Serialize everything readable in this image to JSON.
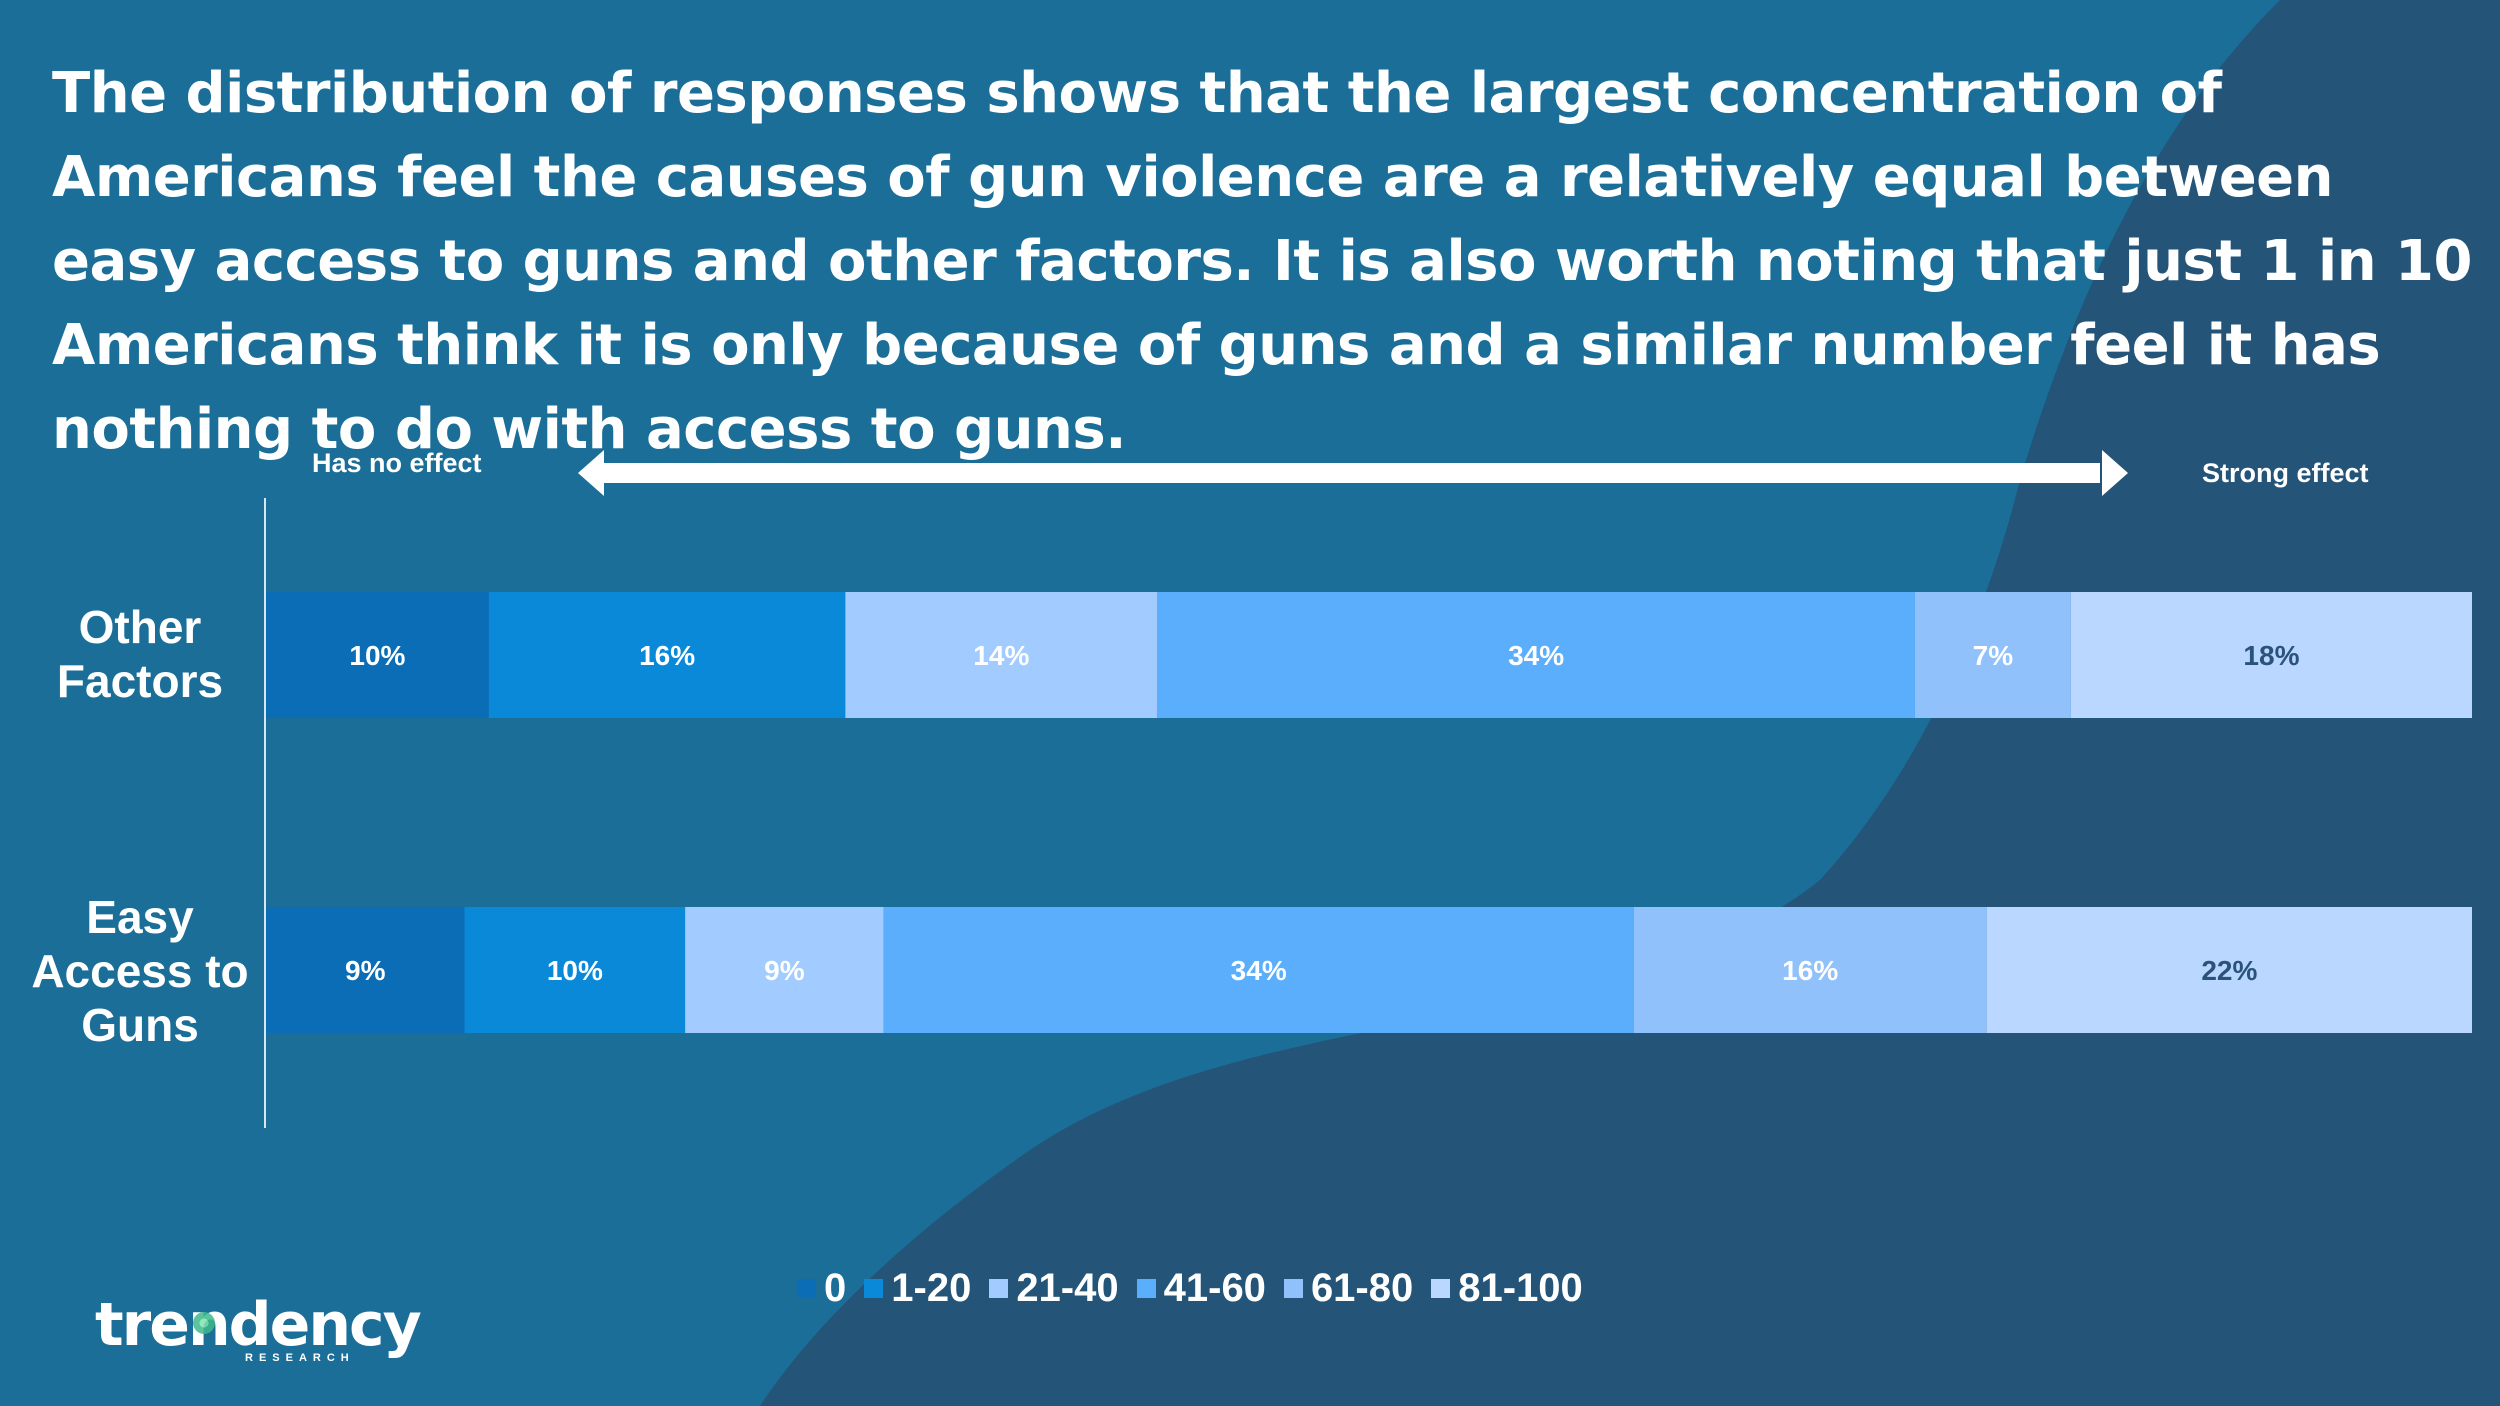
{
  "headline": "The distribution of responses shows that the largest concentration of Americans feel the causes of gun violence are a relatively equal between easy access to guns and other factors. It is also worth noting that just 1 in 10 Americans think it is only because of guns and a similar number feel it has nothing to do with access to guns.",
  "scale": {
    "left": "Has no effect",
    "right": "Strong effect"
  },
  "row_labels": {
    "other": "Other Factors",
    "easy": "Easy Access to Guns"
  },
  "logo": {
    "name": "trendency",
    "sub": "RESEARCH"
  },
  "colors": {
    "background": "#1a6e98",
    "wave": "#245477",
    "segments": [
      "#0a6db5",
      "#0a89d9",
      "#a2cbff",
      "#5aaefc",
      "#90c1fb",
      "#bad7ff"
    ],
    "label_text": [
      "#ffffff",
      "#ffffff",
      "#ffffff",
      "#ffffff",
      "#ffffff",
      "#2b5379"
    ]
  },
  "chart_data": {
    "type": "bar",
    "orientation": "horizontal",
    "stacked": true,
    "categories": [
      "Other Factors",
      "Easy Access to Guns"
    ],
    "series": [
      {
        "name": "0",
        "values": [
          10,
          9
        ]
      },
      {
        "name": "1-20",
        "values": [
          16,
          10
        ]
      },
      {
        "name": "21-40",
        "values": [
          14,
          9
        ]
      },
      {
        "name": "41-60",
        "values": [
          34,
          34
        ]
      },
      {
        "name": "61-80",
        "values": [
          7,
          16
        ]
      },
      {
        "name": "81-100",
        "values": [
          18,
          22
        ]
      }
    ],
    "data_labels": [
      [
        "10%",
        "16%",
        "14%",
        "34%",
        "7%",
        "18%"
      ],
      [
        "9%",
        "10%",
        "9%",
        "34%",
        "16%",
        "22%"
      ]
    ],
    "xlim": [
      0,
      100
    ],
    "legend_position": "bottom"
  }
}
